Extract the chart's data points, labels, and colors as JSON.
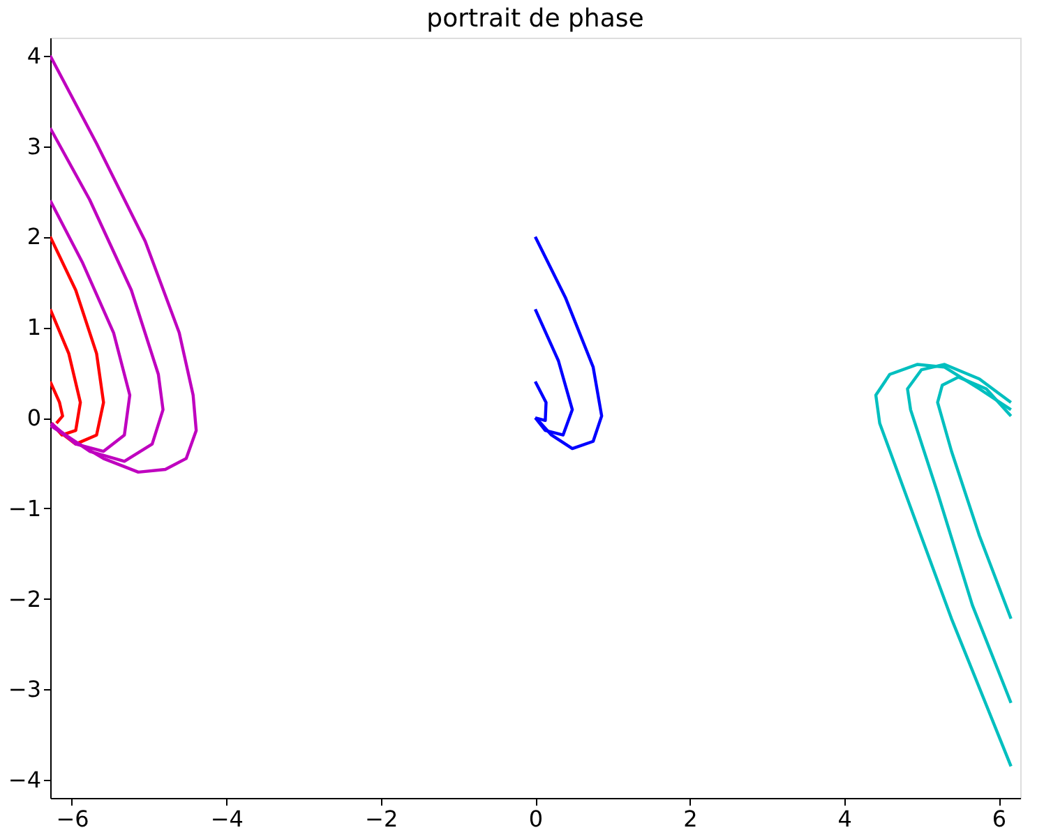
{
  "chart_data": {
    "type": "line",
    "title": "portrait de phase",
    "xlim": [
      -6.28,
      6.28
    ],
    "ylim": [
      -4.2,
      4.2
    ],
    "xticks": [
      -6,
      -4,
      -2,
      0,
      2,
      4,
      6
    ],
    "yticks": [
      -4,
      -3,
      -2,
      -1,
      0,
      1,
      2,
      3,
      4
    ],
    "grid": false,
    "legend": false,
    "marker": "none",
    "line_style": "solid",
    "series": [
      {
        "color": "#ff0000",
        "x": [
          -6.28,
          -6.16,
          -6.12,
          -6.2
        ],
        "values": [
          0.4,
          0.17,
          0.02,
          -0.06
        ]
      },
      {
        "color": "#ff0000",
        "x": [
          -6.28,
          -6.04,
          -5.89,
          -5.95,
          -6.13,
          -6.26
        ],
        "values": [
          1.2,
          0.71,
          0.17,
          -0.14,
          -0.19,
          -0.06
        ]
      },
      {
        "color": "#ff0000",
        "x": [
          -6.28,
          -5.95,
          -5.68,
          -5.59,
          -5.68,
          -5.95,
          -6.18
        ],
        "values": [
          2.0,
          1.41,
          0.71,
          0.17,
          -0.19,
          -0.29,
          -0.14
        ]
      },
      {
        "color": "#bf00bf",
        "x": [
          -6.28,
          -5.86,
          -5.46,
          -5.25,
          -5.32,
          -5.59,
          -5.95,
          -6.27
        ],
        "values": [
          2.4,
          1.71,
          0.94,
          0.25,
          -0.19,
          -0.37,
          -0.29,
          -0.06
        ]
      },
      {
        "color": "#bf00bf",
        "x": [
          -6.28,
          -5.77,
          -5.23,
          -4.88,
          -4.82,
          -4.96,
          -5.32,
          -5.77,
          -6.27
        ],
        "values": [
          3.2,
          2.41,
          1.41,
          0.48,
          0.09,
          -0.29,
          -0.48,
          -0.37,
          -0.08
        ]
      },
      {
        "color": "#bf00bf",
        "x": [
          -6.28,
          -5.68,
          -5.05,
          -4.61,
          -4.43,
          -4.39,
          -4.52,
          -4.79,
          -5.14,
          -5.59,
          -6.04,
          -6.27
        ],
        "values": [
          4.0,
          3.03,
          1.95,
          0.94,
          0.25,
          -0.14,
          -0.45,
          -0.57,
          -0.6,
          -0.45,
          -0.22,
          -0.09
        ]
      },
      {
        "color": "#0000ff",
        "x": [
          0,
          0.14,
          0.13,
          0
        ],
        "values": [
          0.4,
          0.17,
          -0.03,
          0.0
        ]
      },
      {
        "color": "#0000ff",
        "x": [
          0,
          0.3,
          0.48,
          0.36,
          0.13,
          0
        ],
        "values": [
          1.2,
          0.63,
          0.09,
          -0.19,
          -0.14,
          0.0
        ]
      },
      {
        "color": "#0000ff",
        "x": [
          0,
          0.39,
          0.75,
          0.86,
          0.75,
          0.48,
          0.21,
          0.04
        ],
        "values": [
          2.0,
          1.33,
          0.56,
          0.02,
          -0.26,
          -0.34,
          -0.19,
          -0.03
        ]
      },
      {
        "color": "#00bfbf",
        "x": [
          6.16,
          5.39,
          4.86,
          4.46,
          4.41,
          4.59,
          4.95,
          5.3,
          5.75,
          6.16
        ],
        "values": [
          -3.85,
          -2.22,
          -0.99,
          -0.06,
          0.25,
          0.48,
          0.59,
          0.56,
          0.32,
          0.09
        ]
      },
      {
        "color": "#00bfbf",
        "x": [
          6.16,
          5.66,
          5.21,
          4.86,
          4.82,
          5.0,
          5.3,
          5.75,
          6.16
        ],
        "values": [
          -3.15,
          -2.07,
          -0.83,
          0.09,
          0.32,
          0.53,
          0.59,
          0.43,
          0.17
        ]
      },
      {
        "color": "#00bfbf",
        "x": [
          6.16,
          5.75,
          5.39,
          5.21,
          5.27,
          5.48,
          5.84,
          6.16
        ],
        "values": [
          -2.22,
          -1.3,
          -0.37,
          0.17,
          0.36,
          0.45,
          0.32,
          0.02
        ]
      }
    ]
  }
}
